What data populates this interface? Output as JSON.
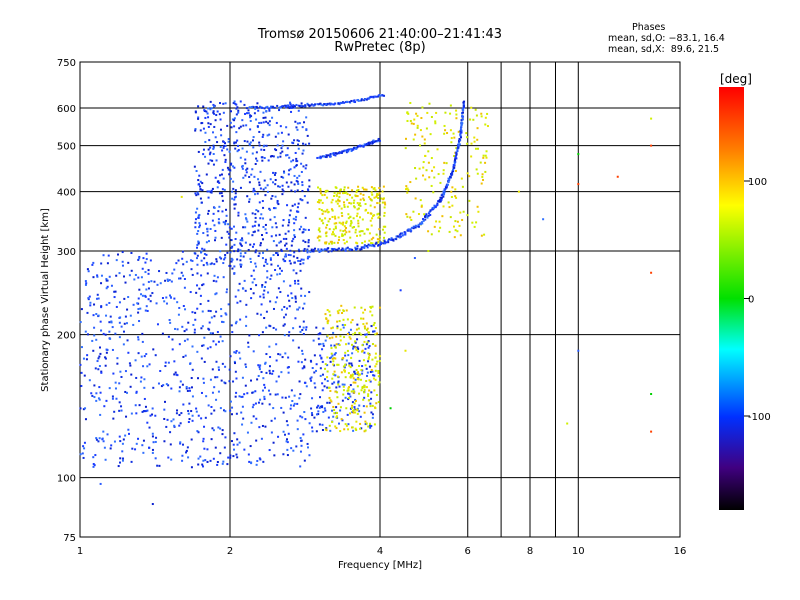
{
  "header": {
    "title_line1": "Tromsø 20150606 21:40:00–21:41:43",
    "title_line2": "RwPretec (8p)",
    "info_heading": "Phases",
    "info_o": "mean, sd,O: −83.1, 16.4",
    "info_x": "mean, sd,X:  89.6, 21.5"
  },
  "chart_data": {
    "type": "scatter",
    "xlabel": "Frequency [MHz]",
    "ylabel": "Stationary phase Virtual Height [km]",
    "xscale": "log",
    "yscale": "log",
    "xlim": [
      1,
      16
    ],
    "ylim": [
      75,
      750
    ],
    "x_ticks": [
      {
        "v": 1,
        "label": "1"
      },
      {
        "v": 2,
        "label": "2"
      },
      {
        "v": 4,
        "label": "4"
      },
      {
        "v": 6,
        "label": "6"
      },
      {
        "v": 8,
        "label": "8"
      },
      {
        "v": 10,
        "label": "10"
      },
      {
        "v": 16,
        "label": "16"
      }
    ],
    "x_minor": [
      7,
      9
    ],
    "y_ticks": [
      {
        "v": 75,
        "label": "75"
      },
      {
        "v": 100,
        "label": "100"
      },
      {
        "v": 200,
        "label": "200"
      },
      {
        "v": 300,
        "label": "300"
      },
      {
        "v": 400,
        "label": "400"
      },
      {
        "v": 500,
        "label": "500"
      },
      {
        "v": 600,
        "label": "600"
      },
      {
        "v": 750,
        "label": "750"
      }
    ],
    "grid": true,
    "colorbar": {
      "label": "[deg]",
      "range": [
        -180,
        180
      ],
      "ticks": [
        {
          "v": 100,
          "label": "100"
        },
        {
          "v": 0,
          "label": "0"
        },
        {
          "v": -100,
          "label": "-100"
        }
      ]
    },
    "colors": {
      "o_mode": "#1a3cff",
      "x_mode": "#e6e600"
    },
    "clusters": [
      {
        "name": "O-mode E/F1 region",
        "x_range": [
          1.0,
          2.9
        ],
        "y_range": [
          105,
          300
        ],
        "phase": -100,
        "count": 900
      },
      {
        "name": "O-mode F1 cusp",
        "x_range": [
          2.9,
          3.9
        ],
        "y_range": [
          125,
          210
        ],
        "phase": -100,
        "count": 200
      },
      {
        "name": "O-mode F2 band",
        "x_range": [
          1.7,
          2.9
        ],
        "y_range": [
          280,
          620
        ],
        "phase": -105,
        "count": 650
      },
      {
        "name": "X-mode F1 trace",
        "x_range": [
          3.1,
          4.0
        ],
        "y_range": [
          125,
          230
        ],
        "phase": 90,
        "count": 260
      },
      {
        "name": "X-mode F2 trace",
        "x_range": [
          3.0,
          4.1
        ],
        "y_range": [
          310,
          410
        ],
        "phase": 90,
        "count": 260
      },
      {
        "name": "X-mode F2 cusp",
        "x_range": [
          4.5,
          6.6
        ],
        "y_range": [
          320,
          620
        ],
        "phase": 90,
        "count": 180
      }
    ],
    "traces": [
      {
        "name": "O-mode F2 trace",
        "points": [
          [
            2.8,
            300
          ],
          [
            3.5,
            303
          ],
          [
            4.2,
            315
          ],
          [
            4.8,
            340
          ],
          [
            5.3,
            385
          ],
          [
            5.6,
            440
          ],
          [
            5.8,
            520
          ],
          [
            5.9,
            620
          ]
        ],
        "phase": -100
      },
      {
        "name": "O-mode upper trace",
        "points": [
          [
            2.2,
            600
          ],
          [
            2.8,
            607
          ],
          [
            3.4,
            615
          ],
          [
            4.1,
            640
          ]
        ],
        "phase": -100
      },
      {
        "name": "O-mode 500 km trace",
        "points": [
          [
            3.0,
            470
          ],
          [
            3.5,
            490
          ],
          [
            4.0,
            515
          ]
        ],
        "phase": -100
      }
    ],
    "sparse_points": [
      [
        14.0,
        570,
        100
      ],
      [
        14.0,
        500,
        160
      ],
      [
        14.0,
        270,
        150
      ],
      [
        14.0,
        150,
        20
      ],
      [
        14.0,
        125,
        140
      ],
      [
        12.0,
        430,
        150
      ],
      [
        10.0,
        415,
        170
      ],
      [
        10.0,
        480,
        10
      ],
      [
        9.5,
        130,
        80
      ],
      [
        8.5,
        350,
        -100
      ],
      [
        7.6,
        400,
        110
      ],
      [
        6.5,
        460,
        80
      ],
      [
        4.7,
        290,
        -90
      ],
      [
        5.0,
        300,
        60
      ],
      [
        4.4,
        248,
        -110
      ],
      [
        4.2,
        140,
        -20
      ],
      [
        4.5,
        185,
        110
      ],
      [
        1.6,
        390,
        80
      ],
      [
        1.4,
        88,
        -110
      ],
      [
        1.1,
        97,
        -80
      ],
      [
        1.6,
        270,
        -100
      ],
      [
        10.0,
        185,
        -120
      ]
    ]
  }
}
